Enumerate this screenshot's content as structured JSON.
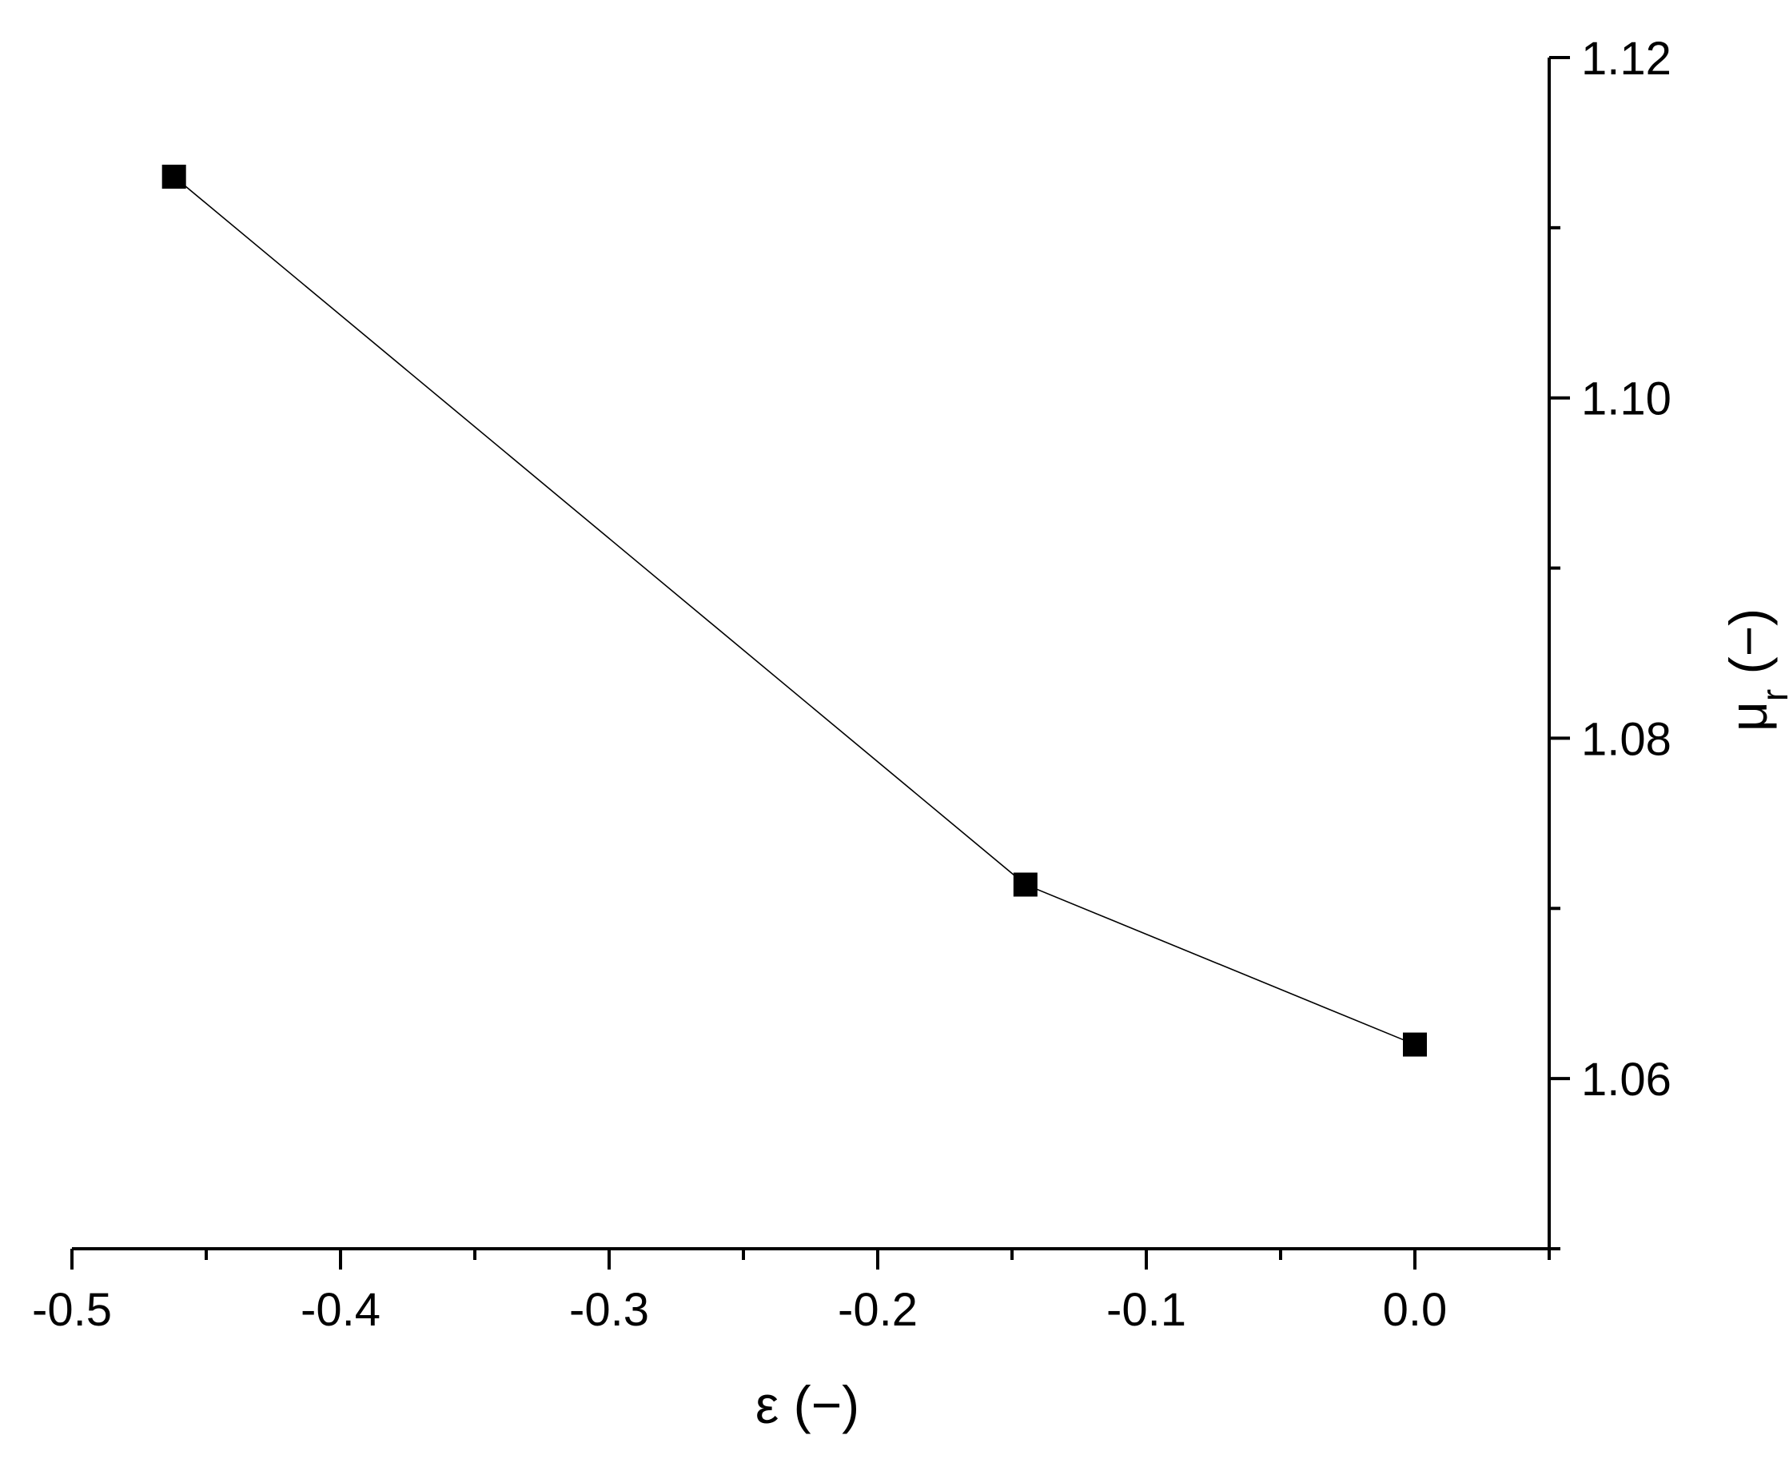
{
  "chart_data": {
    "type": "line",
    "title": "",
    "xlabel": "ε (−)",
    "ylabel": {
      "symbol": "μ",
      "subscript": "r",
      "unit": " (−)"
    },
    "x_axis": {
      "range": [
        -0.5,
        0.05
      ],
      "major_ticks": [
        -0.5,
        -0.4,
        -0.3,
        -0.2,
        -0.1,
        0.0
      ],
      "tick_labels": [
        "-0.5",
        "-0.4",
        "-0.3",
        "-0.2",
        "-0.1",
        "0.0"
      ],
      "minor_ticks": [
        -0.45,
        -0.35,
        -0.25,
        -0.15,
        -0.05,
        0.05
      ]
    },
    "y_axis": {
      "position": "right",
      "range": [
        1.05,
        1.12
      ],
      "major_ticks": [
        1.06,
        1.08,
        1.1,
        1.12
      ],
      "tick_labels": [
        "1.06",
        "1.08",
        "1.10",
        "1.12"
      ],
      "minor_ticks": [
        1.05,
        1.07,
        1.09,
        1.11
      ]
    },
    "grid": false,
    "legend": "none",
    "series": [
      {
        "x": [
          -0.462,
          -0.145,
          0.0
        ],
        "y": [
          1.113,
          1.0714,
          1.062
        ],
        "marker": "square",
        "color": "#000000"
      }
    ]
  }
}
